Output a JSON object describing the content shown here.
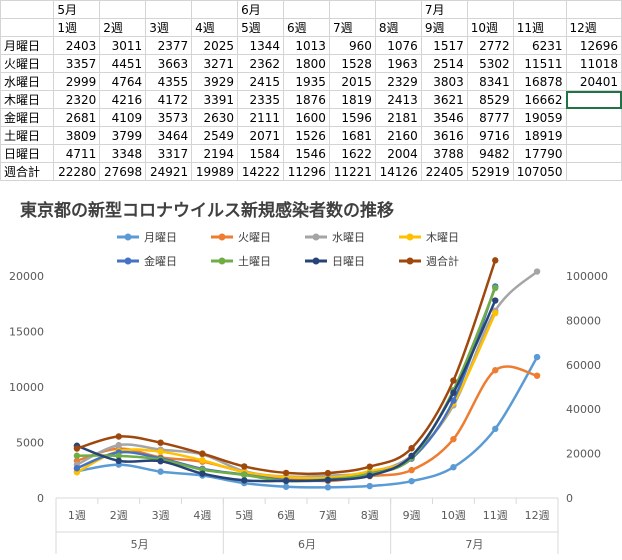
{
  "sheet": {
    "month_row": [
      "",
      "5月",
      "",
      "",
      "",
      "6月",
      "",
      "",
      "",
      "7月",
      "",
      "",
      ""
    ],
    "week_row": [
      "",
      "1週",
      "2週",
      "3週",
      "4週",
      "5週",
      "6週",
      "7週",
      "8週",
      "9週",
      "10週",
      "11週",
      "12週"
    ],
    "rows": [
      {
        "label": "月曜日",
        "values": [
          "2403",
          "3011",
          "2377",
          "2025",
          "1344",
          "1013",
          "960",
          "1076",
          "1517",
          "2772",
          "6231",
          "12696"
        ]
      },
      {
        "label": "火曜日",
        "values": [
          "3357",
          "4451",
          "3663",
          "3271",
          "2362",
          "1800",
          "1528",
          "1963",
          "2514",
          "5302",
          "11511",
          "11018"
        ]
      },
      {
        "label": "水曜日",
        "values": [
          "2999",
          "4764",
          "4355",
          "3929",
          "2415",
          "1935",
          "2015",
          "2329",
          "3803",
          "8341",
          "16878",
          "20401"
        ]
      },
      {
        "label": "木曜日",
        "values": [
          "2320",
          "4216",
          "4172",
          "3391",
          "2335",
          "1876",
          "1819",
          "2413",
          "3621",
          "8529",
          "16662",
          ""
        ]
      },
      {
        "label": "金曜日",
        "values": [
          "2681",
          "4109",
          "3573",
          "2630",
          "2111",
          "1600",
          "1596",
          "2181",
          "3546",
          "8777",
          "19059",
          ""
        ]
      },
      {
        "label": "土曜日",
        "values": [
          "3809",
          "3799",
          "3464",
          "2549",
          "2071",
          "1526",
          "1681",
          "2160",
          "3616",
          "9716",
          "18919",
          ""
        ]
      },
      {
        "label": "日曜日",
        "values": [
          "4711",
          "3348",
          "3317",
          "2194",
          "1584",
          "1546",
          "1622",
          "2004",
          "3788",
          "9482",
          "17790",
          ""
        ]
      },
      {
        "label": "週合計",
        "values": [
          "22280",
          "27698",
          "24921",
          "19989",
          "14222",
          "11296",
          "11221",
          "14126",
          "22405",
          "52919",
          "107050",
          ""
        ]
      }
    ]
  },
  "chart_data": {
    "type": "line",
    "title": "東京都の新型コロナウイルス新規感染者数の推移",
    "categories": [
      "1週",
      "2週",
      "3週",
      "4週",
      "5週",
      "6週",
      "7週",
      "8週",
      "9週",
      "10週",
      "11週",
      "12週"
    ],
    "month_groups": [
      {
        "label": "5月",
        "count": 4
      },
      {
        "label": "6月",
        "count": 4
      },
      {
        "label": "7月",
        "count": 4
      }
    ],
    "y_left": {
      "min": 0,
      "max": 20000,
      "ticks": [
        "0",
        "5000",
        "10000",
        "15000",
        "20000"
      ]
    },
    "y_right": {
      "min": 0,
      "max": 100000,
      "ticks": [
        "0",
        "20000",
        "40000",
        "60000",
        "80000",
        "100000"
      ]
    },
    "legend_position": "top",
    "grid": false,
    "series": [
      {
        "name": "月曜日",
        "axis": "left",
        "color": "#5b9bd5",
        "values": [
          2403,
          3011,
          2377,
          2025,
          1344,
          1013,
          960,
          1076,
          1517,
          2772,
          6231,
          12696
        ]
      },
      {
        "name": "火曜日",
        "axis": "left",
        "color": "#ed7d31",
        "values": [
          3357,
          4451,
          3663,
          3271,
          2362,
          1800,
          1528,
          1963,
          2514,
          5302,
          11511,
          11018
        ]
      },
      {
        "name": "水曜日",
        "axis": "left",
        "color": "#a5a5a5",
        "values": [
          2999,
          4764,
          4355,
          3929,
          2415,
          1935,
          2015,
          2329,
          3803,
          8341,
          16878,
          20401
        ]
      },
      {
        "name": "木曜日",
        "axis": "left",
        "color": "#ffc000",
        "values": [
          2320,
          4216,
          4172,
          3391,
          2335,
          1876,
          1819,
          2413,
          3621,
          8529,
          16662,
          null
        ]
      },
      {
        "name": "金曜日",
        "axis": "left",
        "color": "#4472c4",
        "values": [
          2681,
          4109,
          3573,
          2630,
          2111,
          1600,
          1596,
          2181,
          3546,
          8777,
          19059,
          null
        ]
      },
      {
        "name": "土曜日",
        "axis": "left",
        "color": "#70ad47",
        "values": [
          3809,
          3799,
          3464,
          2549,
          2071,
          1526,
          1681,
          2160,
          3616,
          9716,
          18919,
          null
        ]
      },
      {
        "name": "日曜日",
        "axis": "left",
        "color": "#264478",
        "values": [
          4711,
          3348,
          3317,
          2194,
          1584,
          1546,
          1622,
          2004,
          3788,
          9482,
          17790,
          null
        ]
      },
      {
        "name": "週合計",
        "axis": "right",
        "color": "#9e480e",
        "values": [
          22280,
          27698,
          24921,
          19989,
          14222,
          11296,
          11221,
          14126,
          22405,
          52919,
          107050,
          null
        ]
      }
    ]
  }
}
